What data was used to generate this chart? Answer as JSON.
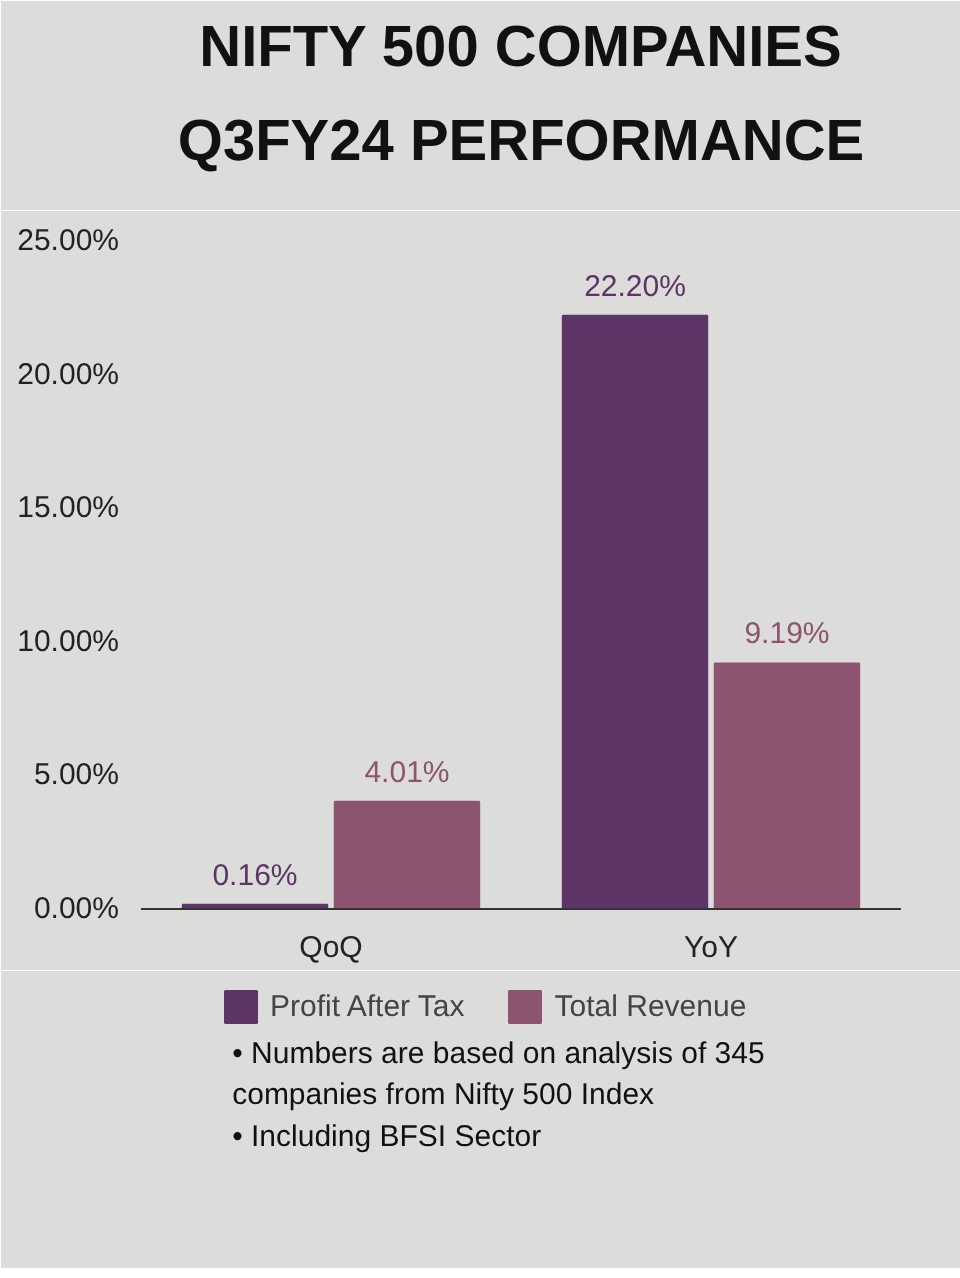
{
  "chart_data": {
    "type": "bar",
    "title": "NIFTY 500 COMPANIES\nQ3FY24 PERFORMANCE",
    "categories": [
      "QoQ",
      "YoY"
    ],
    "series": [
      {
        "name": "Profit After Tax",
        "color": "#5c3566",
        "values": [
          0.16,
          22.2
        ],
        "value_labels": [
          "0.16%",
          "22.20%"
        ]
      },
      {
        "name": "Total Revenue",
        "color": "#8d5472",
        "values": [
          4.01,
          9.19
        ],
        "value_labels": [
          "4.01%",
          "9.19%"
        ]
      }
    ],
    "ylim": [
      0,
      25
    ],
    "yticks": [
      {
        "value": 0,
        "label": "0.00%"
      },
      {
        "value": 5,
        "label": "5.00%"
      },
      {
        "value": 10,
        "label": "10.00%"
      },
      {
        "value": 15,
        "label": "15.00%"
      },
      {
        "value": 20,
        "label": "20.00%"
      },
      {
        "value": 25,
        "label": "25.00%"
      }
    ],
    "grid": false,
    "legend": "bottom",
    "annotations": [
      "• Numbers are based on analysis of 345",
      "   companies from Nifty 500 Index",
      "• Including BFSI Sector"
    ]
  }
}
